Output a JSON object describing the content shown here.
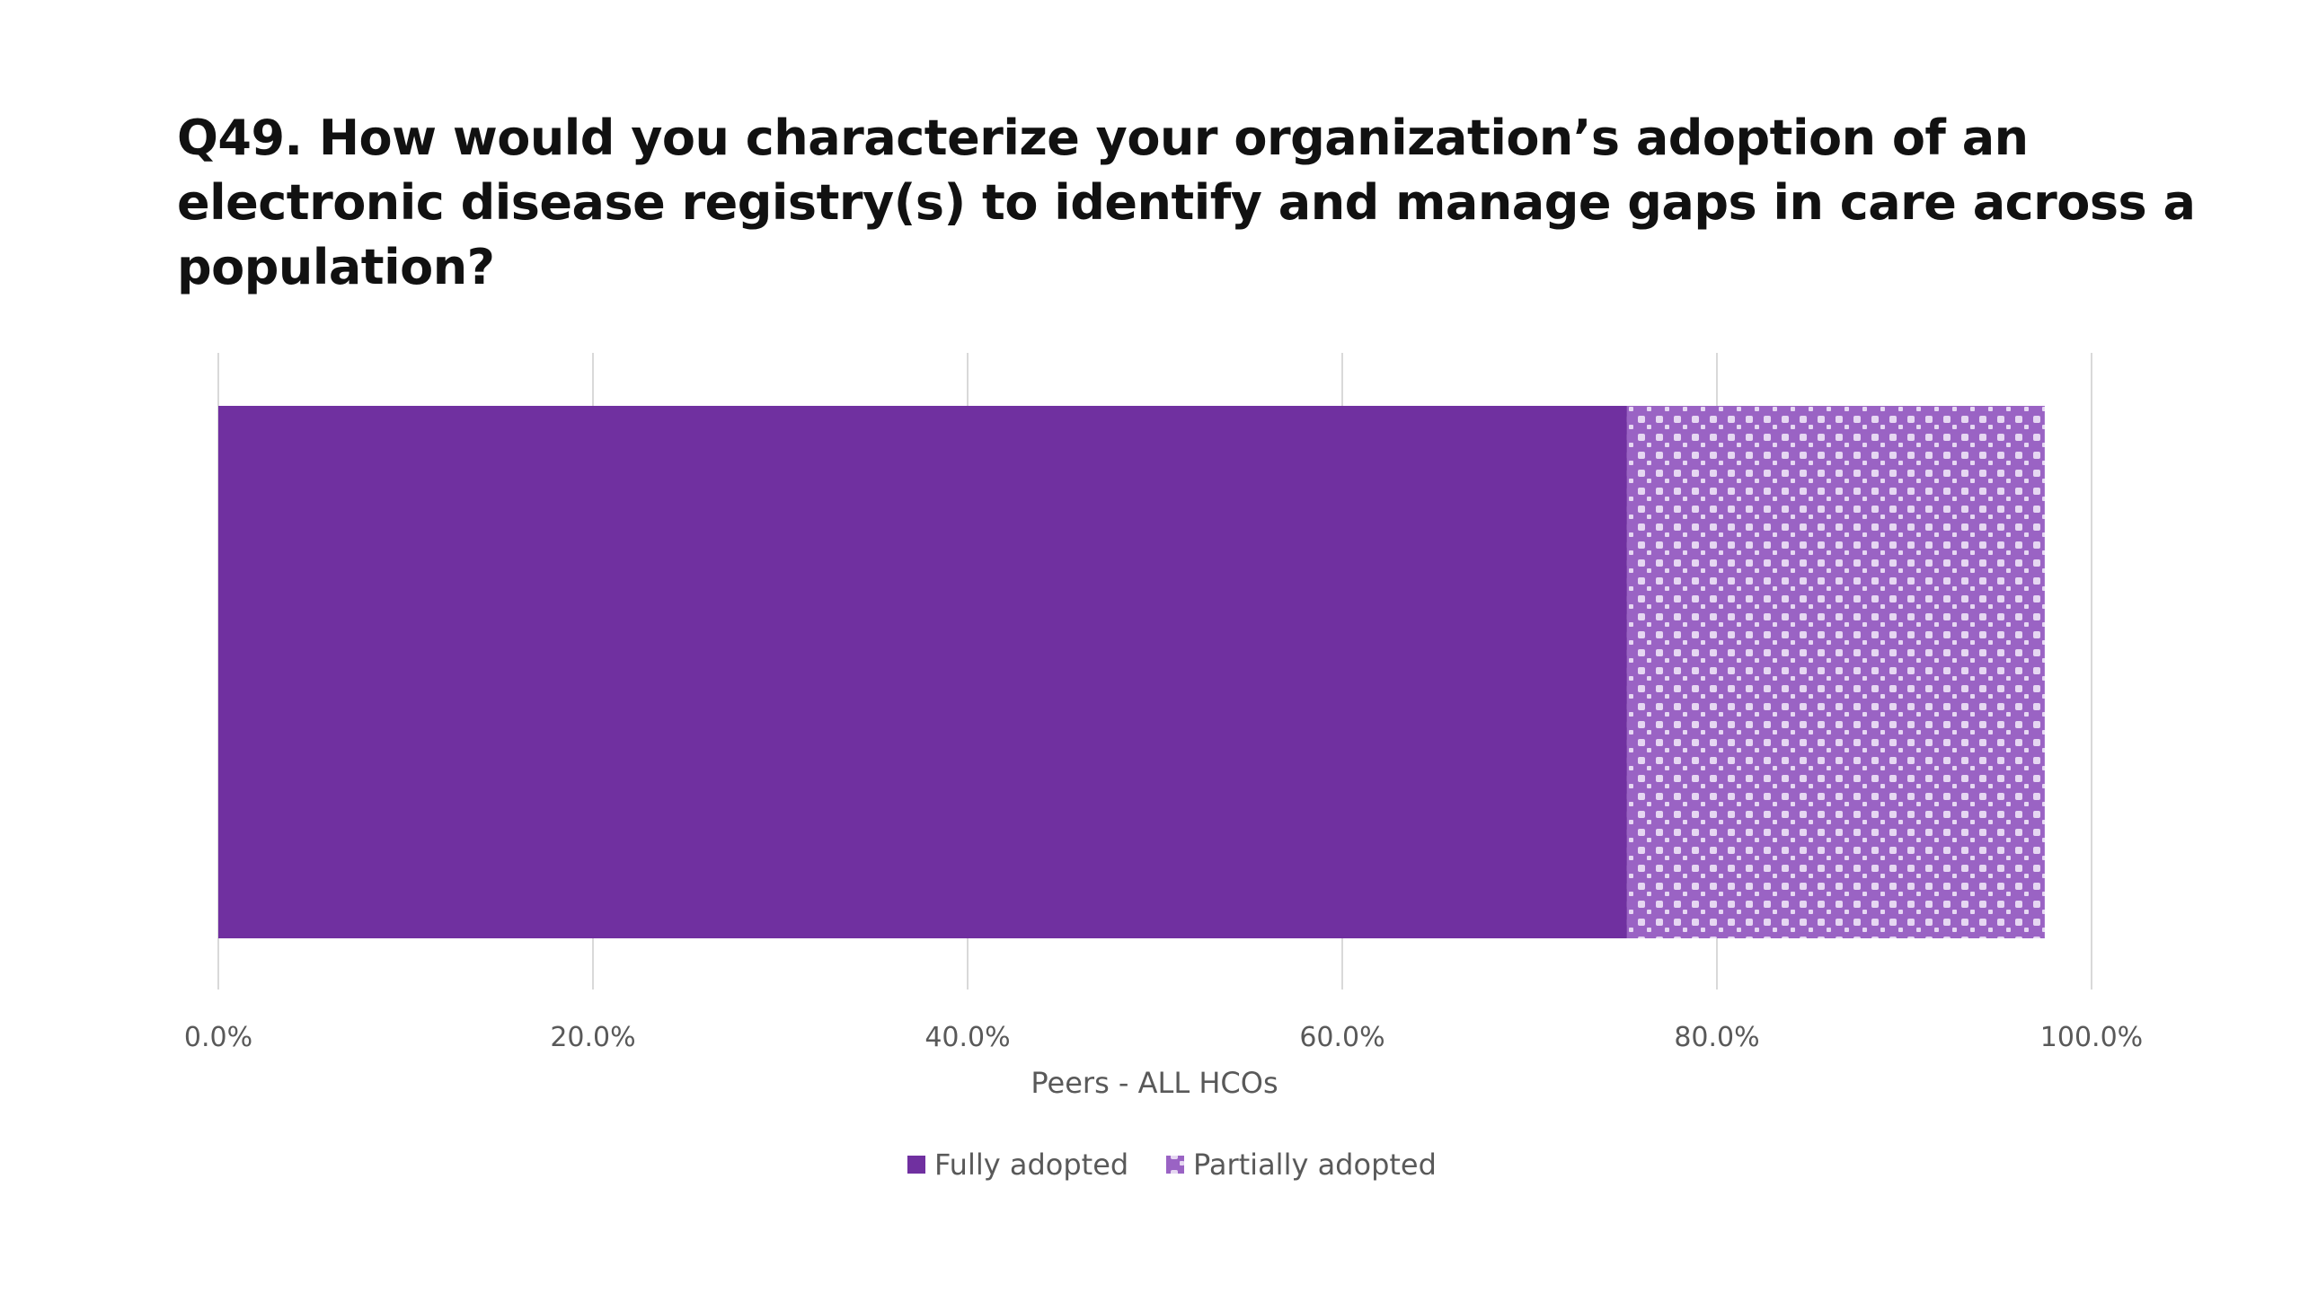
{
  "title": "Q49. How would you characterize your organization’s adoption of an electronic disease registry(s) to identify and manage gaps in care across a population?",
  "colors": {
    "fully": "#7030a0",
    "partial_base": "#9a63c4",
    "partial_dot": "#e6d7f2",
    "gridline": "#d9d9d9",
    "text": "#595959"
  },
  "chart_data": {
    "type": "bar",
    "orientation": "horizontal",
    "stacked": true,
    "categories": [
      "Peers - ALL HCOs"
    ],
    "series": [
      {
        "name": "Fully adopted",
        "values": [
          75.2
        ],
        "pattern": "solid"
      },
      {
        "name": "Partially adopted",
        "values": [
          22.3
        ],
        "pattern": "dotted"
      }
    ],
    "xlim": [
      0,
      100
    ],
    "xticks": [
      0,
      20,
      40,
      60,
      80,
      100
    ],
    "xtick_labels": [
      "0.0%",
      "20.0%",
      "40.0%",
      "60.0%",
      "80.0%",
      "100.0%"
    ],
    "xlabel": "Peers - ALL HCOs",
    "ylabel": "",
    "grid": true,
    "legend": "bottom-center"
  }
}
